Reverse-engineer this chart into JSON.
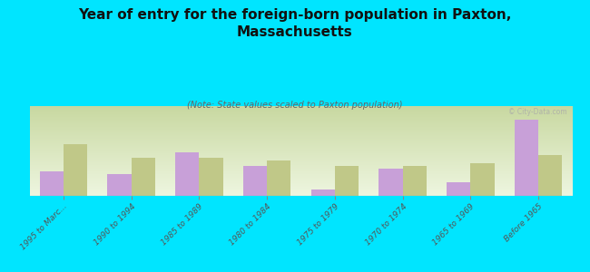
{
  "title": "Year of entry for the foreign-born population in Paxton,\nMassachusetts",
  "subtitle": "(Note: State values scaled to Paxton population)",
  "categories": [
    "1995 to Marc...",
    "1990 to 1994",
    "1985 to 1989",
    "1980 to 1984",
    "1975 to 1979",
    "1970 to 1974",
    "1965 to 1969",
    "Before 1965"
  ],
  "paxton_values": [
    9,
    8,
    16,
    11,
    2.5,
    10,
    5,
    28
  ],
  "mass_values": [
    19,
    14,
    14,
    13,
    11,
    11,
    12,
    15
  ],
  "paxton_color": "#c8a0d8",
  "mass_color": "#c0c888",
  "background_color": "#00e5ff",
  "watermark": "© City-Data.com",
  "bar_width": 0.35,
  "ylim": [
    0,
    33
  ]
}
